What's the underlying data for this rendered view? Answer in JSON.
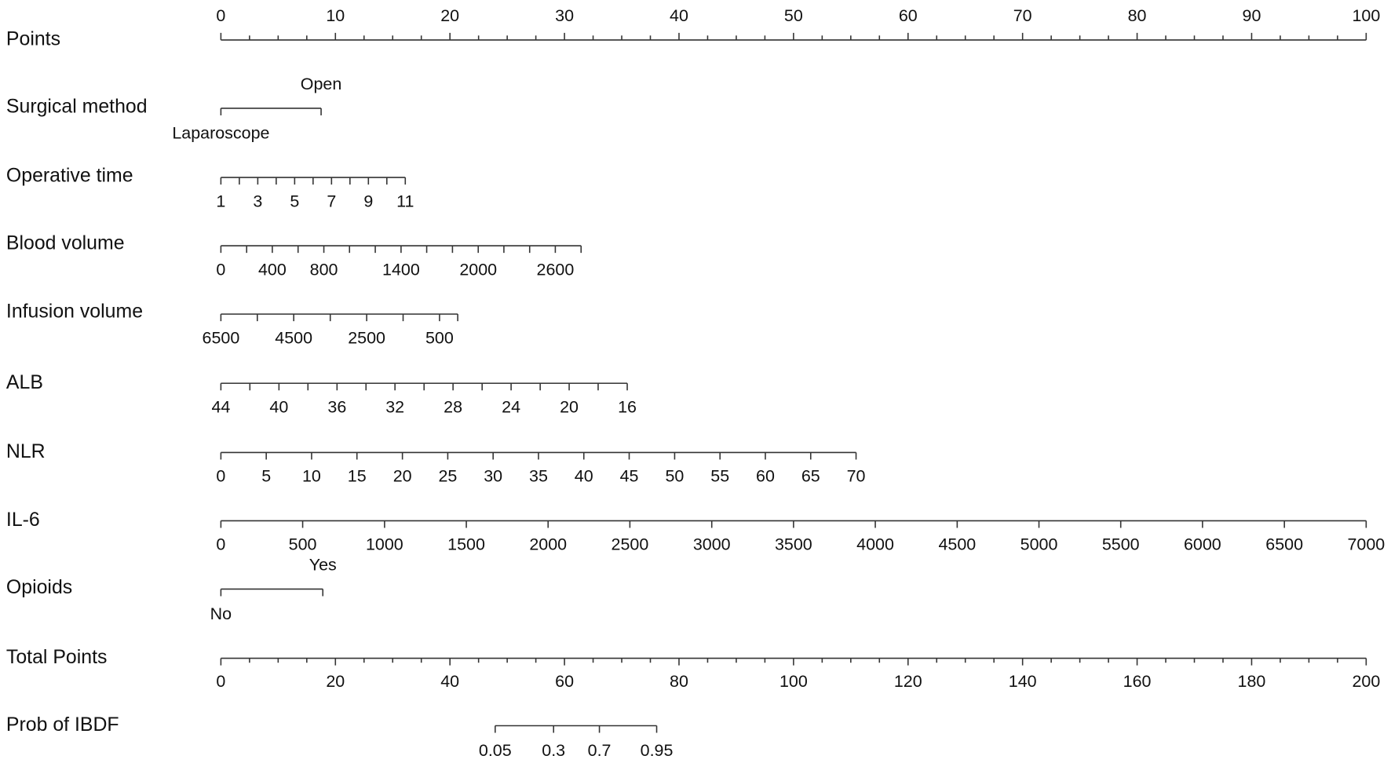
{
  "chart_data": {
    "type": "nomogram",
    "points_scale": {
      "name": "Points",
      "xlim": [
        0,
        100
      ],
      "xticks": [
        0,
        10,
        20,
        30,
        40,
        50,
        60,
        70,
        80,
        90,
        100
      ],
      "minor_ticks": [
        2.5,
        5,
        7.5,
        12.5,
        15,
        17.5,
        22.5,
        25,
        27.5,
        32.5,
        35,
        37.5,
        42.5,
        45,
        47.5,
        52.5,
        55,
        57.5,
        62.5,
        65,
        67.5,
        72.5,
        75,
        77.5,
        82.5,
        85,
        87.5,
        92.5,
        95,
        97.5
      ]
    },
    "variables": [
      {
        "name": "Surgical method",
        "ticks": [
          "Laparoscope",
          "Open"
        ],
        "points": [
          0,
          8.75
        ],
        "minor_points": []
      },
      {
        "name": "Operative time",
        "ticks": [
          1,
          3,
          5,
          7,
          9,
          11
        ],
        "points": [
          0,
          3.22,
          6.44,
          9.66,
          12.88,
          16.1
        ],
        "minor_points": [
          1.61,
          4.83,
          8.05,
          11.27,
          14.49
        ]
      },
      {
        "name": "Blood volume",
        "ticks": [
          0,
          400,
          800,
          1400,
          2000,
          2600
        ],
        "points": [
          0,
          4.49,
          8.99,
          15.73,
          22.47,
          29.2
        ],
        "minor_points": [
          2.25,
          6.74,
          11.23,
          13.48,
          17.97,
          20.22,
          24.71,
          26.96,
          31.45
        ]
      },
      {
        "name": "Infusion volume",
        "ticks": [
          6500,
          4500,
          2500,
          500
        ],
        "points": [
          0,
          6.36,
          12.73,
          19.09
        ],
        "minor_points": [
          3.18,
          9.55,
          15.91,
          20.68
        ]
      },
      {
        "name": "ALB",
        "ticks": [
          44,
          40,
          36,
          32,
          28,
          24,
          20,
          16
        ],
        "points": [
          0,
          5.07,
          10.14,
          15.2,
          20.27,
          25.34,
          30.41,
          35.48
        ],
        "minor_points": [
          2.53,
          7.6,
          12.67,
          17.74,
          22.81,
          27.88,
          32.94
        ]
      },
      {
        "name": "NLR",
        "ticks": [
          0,
          5,
          10,
          15,
          20,
          25,
          30,
          35,
          40,
          45,
          50,
          55,
          60,
          65,
          70
        ],
        "points": [
          0,
          3.96,
          7.92,
          11.88,
          15.85,
          19.81,
          23.77,
          27.73,
          31.69,
          35.65,
          39.62,
          43.58,
          47.54,
          51.5,
          55.46
        ],
        "minor_points": []
      },
      {
        "name": "IL-6",
        "ticks": [
          0,
          500,
          1000,
          1500,
          2000,
          2500,
          3000,
          3500,
          4000,
          4500,
          5000,
          5500,
          6000,
          6500,
          7000
        ],
        "points": [
          0,
          7.14,
          14.29,
          21.43,
          28.57,
          35.71,
          42.86,
          50,
          57.14,
          64.29,
          71.43,
          78.57,
          85.71,
          92.86,
          100
        ],
        "minor_points": []
      },
      {
        "name": "Opioids",
        "ticks": [
          "No",
          "Yes"
        ],
        "points": [
          0,
          8.9
        ],
        "minor_points": []
      }
    ],
    "total_scale": {
      "name": "Total Points",
      "xlim": [
        0,
        200
      ],
      "xticks": [
        0,
        20,
        40,
        60,
        80,
        100,
        120,
        140,
        160,
        180,
        200
      ],
      "minor_ticks": [
        5,
        10,
        15,
        25,
        30,
        35,
        45,
        50,
        55,
        65,
        70,
        75,
        85,
        90,
        95,
        105,
        110,
        115,
        125,
        130,
        135,
        145,
        150,
        155,
        165,
        170,
        175,
        185,
        190,
        195
      ]
    },
    "probability": {
      "name": "Prob of IBDF",
      "ticks": [
        0.05,
        0.3,
        0.7,
        0.95
      ],
      "total_points": [
        47.9,
        58.1,
        66.1,
        76.1
      ]
    }
  }
}
